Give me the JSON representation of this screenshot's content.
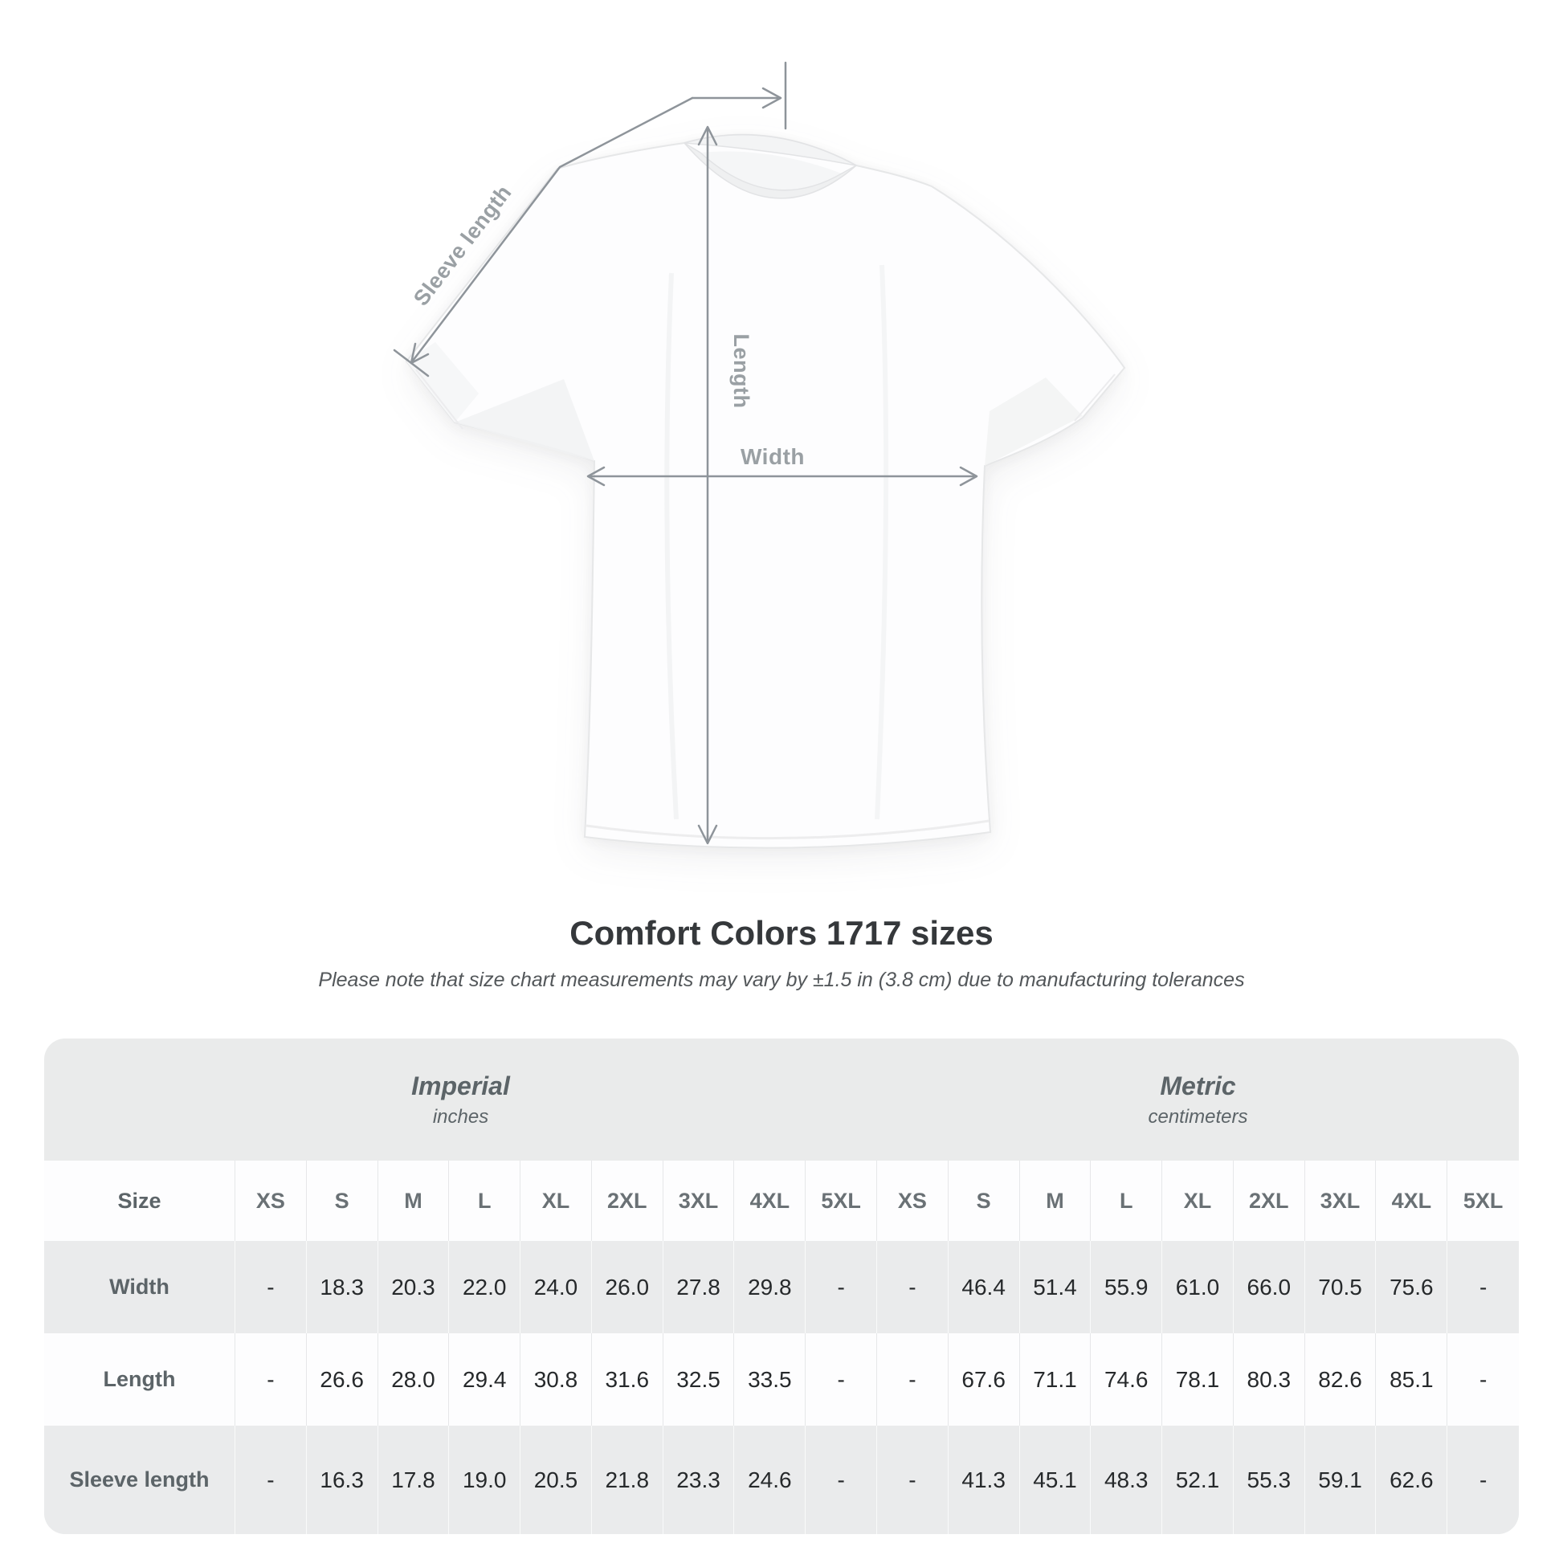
{
  "diagram": {
    "labels": {
      "sleeve_length": "Sleeve length",
      "length": "Length",
      "width": "Width"
    },
    "product": "white crew-neck t-shirt",
    "arrow_color": "#8e949a",
    "label_color": "#9aa0a4"
  },
  "title": "Comfort Colors 1717 sizes",
  "subtitle": "Please note that size chart measurements may vary by ±1.5 in (3.8 cm) due to manufacturing tolerances",
  "table": {
    "unit_groups": [
      {
        "name": "Imperial",
        "unit": "inches"
      },
      {
        "name": "Metric",
        "unit": "centimeters"
      }
    ],
    "size_header": "Size",
    "sizes": [
      "XS",
      "S",
      "M",
      "L",
      "XL",
      "2XL",
      "3XL",
      "4XL",
      "5XL"
    ],
    "rows": [
      {
        "label": "Width",
        "imperial": [
          "-",
          "18.3",
          "20.3",
          "22.0",
          "24.0",
          "26.0",
          "27.8",
          "29.8",
          "-"
        ],
        "metric": [
          "-",
          "46.4",
          "51.4",
          "55.9",
          "61.0",
          "66.0",
          "70.5",
          "75.6",
          "-"
        ]
      },
      {
        "label": "Length",
        "imperial": [
          "-",
          "26.6",
          "28.0",
          "29.4",
          "30.8",
          "31.6",
          "32.5",
          "33.5",
          "-"
        ],
        "metric": [
          "-",
          "67.6",
          "71.1",
          "74.6",
          "78.1",
          "80.3",
          "82.6",
          "85.1",
          "-"
        ]
      },
      {
        "label": "Sleeve length",
        "imperial": [
          "-",
          "16.3",
          "17.8",
          "19.0",
          "20.5",
          "21.8",
          "23.3",
          "24.6",
          "-"
        ],
        "metric": [
          "-",
          "41.3",
          "45.1",
          "48.3",
          "52.1",
          "55.3",
          "59.1",
          "62.6",
          "-"
        ]
      }
    ]
  },
  "colors": {
    "panel_bg": "#eaebeb",
    "row_alt_bg": "#fdfdfe",
    "title_text": "#35383b",
    "muted_text": "#5c6468",
    "value_text": "#26292b"
  },
  "chart_data": {
    "type": "table",
    "title": "Comfort Colors 1717 sizes",
    "note": "Please note that size chart measurements may vary by ±1.5 in (3.8 cm) due to manufacturing tolerances",
    "columns": [
      "XS",
      "S",
      "M",
      "L",
      "XL",
      "2XL",
      "3XL",
      "4XL",
      "5XL"
    ],
    "units": {
      "imperial": "inches",
      "metric": "centimeters"
    },
    "rows": [
      {
        "measure": "Width",
        "imperial": [
          null,
          18.3,
          20.3,
          22.0,
          24.0,
          26.0,
          27.8,
          29.8,
          null
        ],
        "metric": [
          null,
          46.4,
          51.4,
          55.9,
          61.0,
          66.0,
          70.5,
          75.6,
          null
        ]
      },
      {
        "measure": "Length",
        "imperial": [
          null,
          26.6,
          28.0,
          29.4,
          30.8,
          31.6,
          32.5,
          33.5,
          null
        ],
        "metric": [
          null,
          67.6,
          71.1,
          74.6,
          78.1,
          80.3,
          82.6,
          85.1,
          null
        ]
      },
      {
        "measure": "Sleeve length",
        "imperial": [
          null,
          16.3,
          17.8,
          19.0,
          20.5,
          21.8,
          23.3,
          24.6,
          null
        ],
        "metric": [
          null,
          41.3,
          45.1,
          48.3,
          52.1,
          55.3,
          59.1,
          62.6,
          null
        ]
      }
    ]
  }
}
